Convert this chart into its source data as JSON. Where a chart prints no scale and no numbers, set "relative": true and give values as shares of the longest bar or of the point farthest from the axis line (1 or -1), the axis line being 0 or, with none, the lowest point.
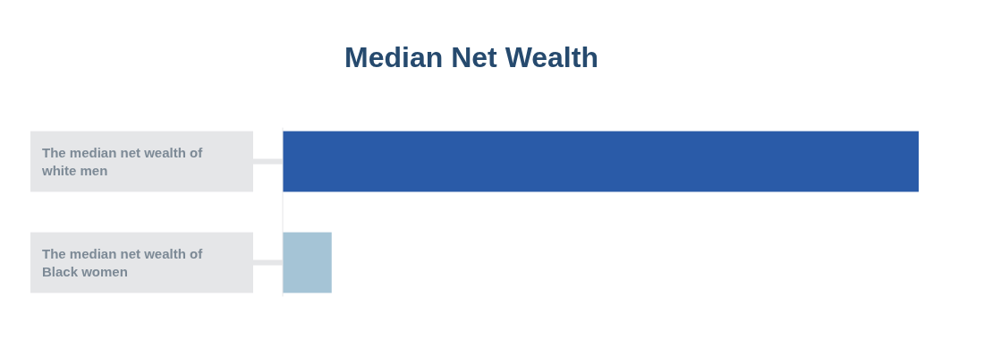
{
  "chart_data": {
    "type": "bar",
    "title": "Median Net Wealth",
    "orientation": "horizontal",
    "relative": true,
    "categories": [
      "The median net wealth of white men",
      "The median net wealth of Black women"
    ],
    "values": [
      1,
      0.077
    ],
    "colors": [
      "#2a5ba8",
      "#a5c4d6"
    ]
  }
}
